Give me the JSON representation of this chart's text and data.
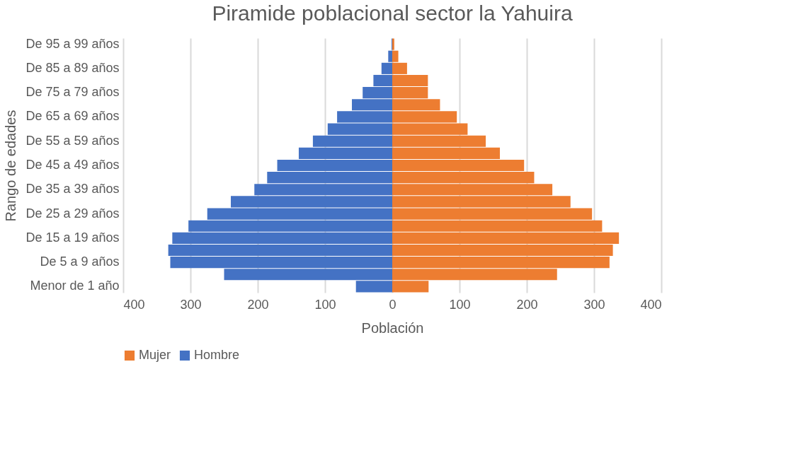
{
  "chart_data": {
    "type": "bar",
    "orientation": "horizontal",
    "title": "Piramide poblacional sector la Yahuira",
    "xlabel": "Población",
    "ylabel": "Rango de edades",
    "categories": [
      "De 95 a 99 años",
      null,
      "De 85 a 89 años",
      null,
      "De 75 a 79 años",
      null,
      "De 65 a 69 años",
      null,
      "De 55 a 59 años",
      null,
      "De 45 a 49 años",
      null,
      "De 35 a 39 años",
      null,
      "De 25 a 29 años",
      null,
      "De 15 a 19 años",
      null,
      "De 5 a 9 años",
      null,
      "Menor de 1 año"
    ],
    "series": [
      {
        "name": "Mujer",
        "color": "#ed7d31",
        "values": [
          3,
          9,
          22,
          53,
          53,
          71,
          96,
          112,
          139,
          160,
          196,
          211,
          238,
          265,
          297,
          312,
          337,
          328,
          323,
          245,
          54
        ]
      },
      {
        "name": "Hombre",
        "color": "#4472c4",
        "values": [
          -1,
          -6,
          -16,
          -28,
          -44,
          -60,
          -82,
          -96,
          -118,
          -139,
          -171,
          -186,
          -205,
          -240,
          -275,
          -303,
          -327,
          -333,
          -330,
          -250,
          -54
        ]
      }
    ],
    "xlim": [
      -400,
      400
    ],
    "xticks": [
      {
        "value": -400,
        "label": "400"
      },
      {
        "value": -300,
        "label": "300"
      },
      {
        "value": -200,
        "label": "200"
      },
      {
        "value": -100,
        "label": "100"
      },
      0,
      100,
      200,
      300,
      400
    ],
    "grid": "x",
    "legend": "bottom",
    "stacked": true
  }
}
